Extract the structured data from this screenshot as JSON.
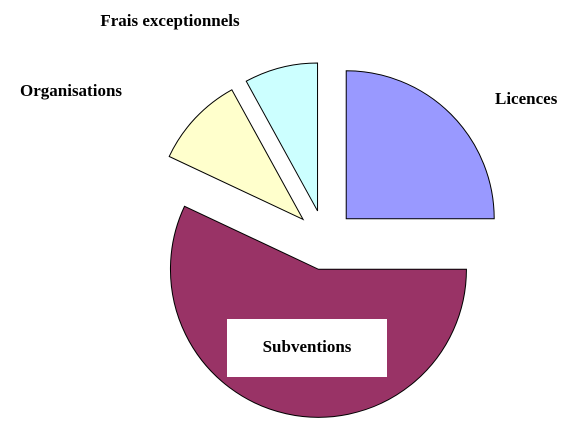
{
  "chart_data": {
    "type": "pie",
    "categories": [
      "Licences",
      "Subventions",
      "Organisations",
      "Frais exceptionnels"
    ],
    "values": [
      25,
      57,
      10,
      8
    ],
    "colors": [
      "#9999ff",
      "#993366",
      "#ffffcc",
      "#ccffff"
    ],
    "exploded": true
  }
}
